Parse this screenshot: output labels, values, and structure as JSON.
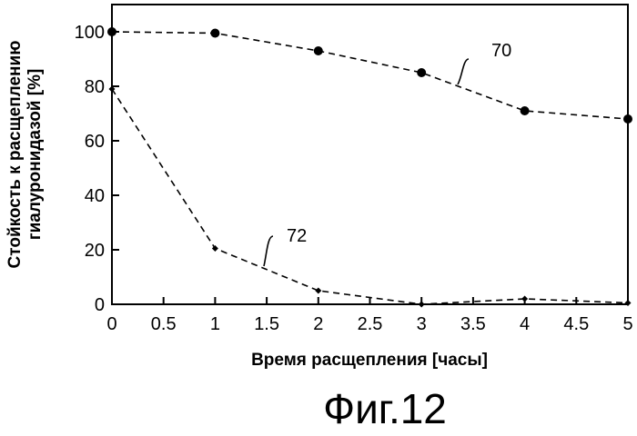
{
  "chart_data": {
    "type": "line",
    "title": "",
    "figure_label": "Фиг.12",
    "xlabel": "Время расщепления [часы]",
    "ylabel": [
      "Стойкость к расщеплению",
      "гиалуронидазой [%]"
    ],
    "xlim": [
      0,
      5
    ],
    "ylim": [
      0,
      110
    ],
    "x_ticks": [
      "0",
      "0.5",
      "1",
      "1.5",
      "2",
      "2.5",
      "3",
      "3.5",
      "4",
      "4.5",
      "5"
    ],
    "y_ticks": [
      "0",
      "20",
      "40",
      "60",
      "80",
      "100"
    ],
    "grid": false,
    "legend": "none",
    "series": [
      {
        "label": "70",
        "marker": "circle",
        "line": "dashed",
        "x": [
          0,
          1,
          2,
          3,
          4,
          5
        ],
        "y": [
          100,
          99.5,
          93,
          85,
          71,
          68
        ]
      },
      {
        "label": "72",
        "marker": "small-diamond",
        "line": "dashed",
        "x": [
          0,
          1,
          2,
          3,
          4,
          5
        ],
        "y": [
          79,
          20.5,
          5,
          0,
          2,
          0.5
        ]
      }
    ],
    "annotations": [
      {
        "text": "70",
        "series": 0
      },
      {
        "text": "72",
        "series": 1
      }
    ]
  }
}
